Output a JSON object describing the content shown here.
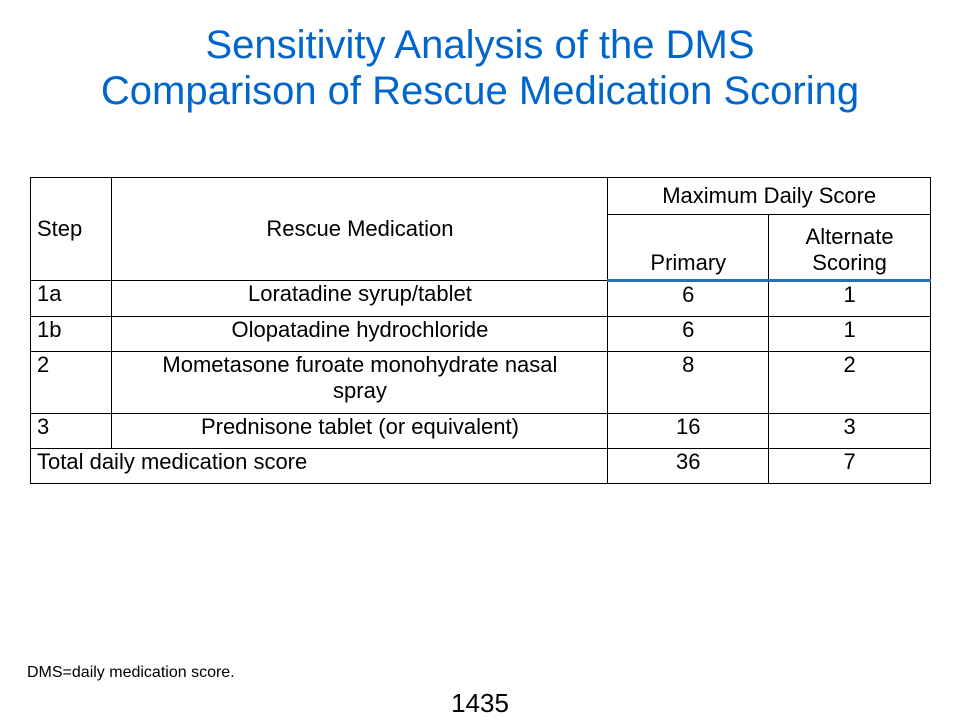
{
  "title": {
    "line1": "Sensitivity Analysis of the DMS",
    "line2": "Comparison of Rescue Medication Scoring"
  },
  "table": {
    "headers": {
      "step": "Step",
      "medication": "Rescue Medication",
      "group": "Maximum Daily Score",
      "primary": "Primary",
      "alternate": "Alternate Scoring"
    },
    "rows": [
      {
        "step": "1a",
        "medication": "Loratadine syrup/tablet",
        "primary": "6",
        "alternate": "1"
      },
      {
        "step": "1b",
        "medication": "Olopatadine hydrochloride",
        "primary": "6",
        "alternate": "1"
      },
      {
        "step": "2",
        "medication": "Mometasone furoate monohydrate nasal spray",
        "primary": "8",
        "alternate": "2"
      },
      {
        "step": "3",
        "medication": "Prednisone tablet (or equivalent)",
        "primary": "16",
        "alternate": "3"
      }
    ],
    "total": {
      "label": "Total daily medication score",
      "primary": "36",
      "alternate": "7"
    }
  },
  "footnote": "DMS=daily medication score.",
  "page_number": "1435",
  "colors": {
    "title": "#0066cc",
    "header_rule": "#2a6ebb"
  }
}
